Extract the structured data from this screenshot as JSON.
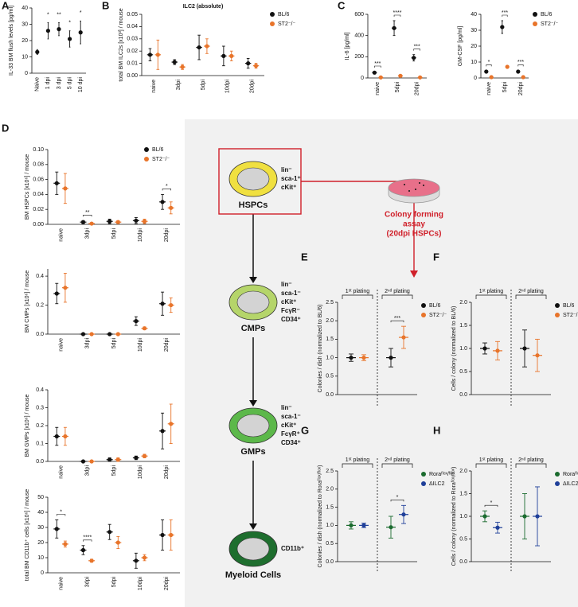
{
  "chart_data": [
    {
      "panel": "A",
      "type": "dot",
      "ylabel": "IL-33 BM flush levels [pg/ml]",
      "categories": [
        "Naive",
        "1 dpi",
        "3 dpi",
        "5 dpi",
        "10 dpi"
      ],
      "series": [
        {
          "color": "#111111",
          "values": [
            13,
            26,
            27,
            21,
            25
          ],
          "errors": [
            1.5,
            5,
            4,
            5,
            7
          ]
        }
      ],
      "significance": [
        null,
        "*",
        "**",
        "*",
        "*"
      ],
      "ylim": [
        0,
        40
      ],
      "yticks": [
        0,
        10,
        20,
        30,
        40
      ]
    },
    {
      "panel": "B",
      "type": "dot",
      "title": "ILC2 (absolute)",
      "ylabel": "total BM ILC2s [x10³] / mouse",
      "categories": [
        "naive",
        "3dpi",
        "5dpi",
        "10dpi",
        "20dpi"
      ],
      "series": [
        {
          "name": "BL/6",
          "color": "#111111",
          "values": [
            0.017,
            0.011,
            0.023,
            0.016,
            0.01
          ],
          "errors": [
            0.005,
            0.002,
            0.01,
            0.008,
            0.004
          ]
        },
        {
          "name": "ST2⁻/⁻",
          "color": "#e8742a",
          "values": [
            0.017,
            0.007,
            0.024,
            0.016,
            0.008
          ],
          "errors": [
            0.012,
            0.002,
            0.006,
            0.004,
            0.002
          ]
        }
      ],
      "ylim": [
        0,
        0.05
      ],
      "yticks": [
        {
          "value": 0,
          "label": "0.00"
        },
        0.01,
        0.02,
        0.03,
        0.04,
        0.05
      ],
      "legend": true
    },
    {
      "panel": "C",
      "type": "dot",
      "ylabel": "IL-6 [pg/ml]",
      "categories": [
        "naive",
        "5dpi",
        "20dpi"
      ],
      "series": [
        {
          "name": "BL/6",
          "color": "#111111",
          "values": [
            50,
            470,
            190
          ],
          "errors": [
            10,
            70,
            30
          ]
        },
        {
          "name": "ST2⁻/⁻",
          "color": "#e8742a",
          "values": [
            5,
            20,
            5
          ],
          "errors": [
            2,
            4,
            2
          ]
        }
      ],
      "significance": [
        "***",
        "****",
        "***"
      ],
      "ylim": [
        0,
        600
      ],
      "yticks": [
        0,
        200,
        400,
        600
      ]
    },
    {
      "type": "dot",
      "ylabel": "GM-CSF [pg/ml]",
      "categories": [
        "naive",
        "5dpi",
        "20dpi"
      ],
      "series": [
        {
          "name": "BL/6",
          "color": "#111111",
          "values": [
            4,
            32,
            4
          ],
          "errors": [
            0.8,
            4,
            0.8
          ]
        },
        {
          "name": "ST2⁻/⁻",
          "color": "#e8742a",
          "values": [
            0.5,
            7,
            0.5
          ],
          "errors": [
            0.3,
            0.8,
            0.3
          ]
        }
      ],
      "significance": [
        "*",
        "***",
        "***"
      ],
      "ylim": [
        0,
        40
      ],
      "yticks": [
        0,
        10,
        20,
        30,
        40
      ],
      "legend": true
    },
    {
      "panel": "D",
      "type": "dot",
      "ylabel": "BM HSPCs [x10⁶] / mouse",
      "categories": [
        "naive",
        "3dpi",
        "5dpi",
        "10dpi",
        "20dpi"
      ],
      "series": [
        {
          "name": "BL/6",
          "color": "#111111",
          "values": [
            0.055,
            0.003,
            0.004,
            0.005,
            0.03
          ],
          "errors": [
            0.015,
            0.002,
            0.003,
            0.004,
            0.01
          ]
        },
        {
          "name": "ST2⁻/⁻",
          "color": "#e8742a",
          "values": [
            0.048,
            0.001,
            0.003,
            0.004,
            0.022
          ],
          "errors": [
            0.02,
            0.001,
            0.002,
            0.003,
            0.008
          ]
        }
      ],
      "significance": [
        null,
        "**",
        null,
        null,
        "*"
      ],
      "ylim": [
        0,
        0.1
      ],
      "yticks": [
        {
          "value": 0,
          "label": "0.00"
        },
        0.02,
        0.04,
        0.06,
        0.08,
        {
          "value": 0.1,
          "label": "0.10"
        }
      ],
      "legend": true
    },
    {
      "type": "dot",
      "ylabel": "BM CMPs [x10⁶] / mouse",
      "categories": [
        "naive",
        "3dpi",
        "5dpi",
        "10dpi",
        "20dpi"
      ],
      "series": [
        {
          "name": "BL/6",
          "color": "#111111",
          "values": [
            0.28,
            0.0,
            0.0,
            0.09,
            0.21
          ],
          "errors": [
            0.07,
            0.003,
            0.004,
            0.03,
            0.08
          ]
        },
        {
          "name": "ST2⁻/⁻",
          "color": "#e8742a",
          "values": [
            0.32,
            0.0,
            0.0,
            0.04,
            0.2
          ],
          "errors": [
            0.1,
            0.002,
            0.003,
            0.01,
            0.05
          ]
        }
      ],
      "ylim": [
        0,
        0.45
      ],
      "yticks": [
        {
          "value": 0,
          "label": "0.0"
        },
        0.2,
        0.4
      ]
    },
    {
      "type": "dot",
      "ylabel": "BM GMPs [x10⁶] / mouse",
      "categories": [
        "naive",
        "3dpi",
        "5dpi",
        "10dpi",
        "20dpi"
      ],
      "series": [
        {
          "name": "BL/6",
          "color": "#111111",
          "values": [
            0.14,
            0.0,
            0.01,
            0.02,
            0.17
          ],
          "errors": [
            0.05,
            0.002,
            0.01,
            0.01,
            0.1
          ]
        },
        {
          "name": "ST2⁻/⁻",
          "color": "#e8742a",
          "values": [
            0.14,
            0.0,
            0.01,
            0.03,
            0.21
          ],
          "errors": [
            0.05,
            0.002,
            0.01,
            0.01,
            0.11
          ]
        }
      ],
      "ylim": [
        0,
        0.4
      ],
      "yticks": [
        {
          "value": 0,
          "label": "0.0"
        },
        0.1,
        0.2,
        0.3,
        0.4
      ]
    },
    {
      "type": "dot",
      "ylabel": "total BM CD11b⁺ cells [x10⁶] / mouse",
      "categories": [
        "naive",
        "3dpi",
        "5dpi",
        "10dpi",
        "20dpi"
      ],
      "series": [
        {
          "name": "BL/6",
          "color": "#111111",
          "values": [
            29,
            15,
            27,
            8,
            25
          ],
          "errors": [
            6,
            3,
            5,
            5,
            10
          ]
        },
        {
          "name": "ST2⁻/⁻",
          "color": "#e8742a",
          "values": [
            19,
            8,
            20,
            10,
            25
          ],
          "errors": [
            2,
            1,
            4,
            2,
            10
          ]
        }
      ],
      "significance": [
        "*",
        "****",
        null,
        null,
        null
      ],
      "ylim": [
        0,
        50
      ],
      "yticks": [
        0,
        10,
        20,
        30,
        40,
        50
      ]
    },
    {
      "panel": "E",
      "type": "dot",
      "ylabel": "Colonies / dish (normalized to BL/6)",
      "categories": [
        "1ˢᵗ plating",
        "2ⁿᵈ plating"
      ],
      "series": [
        {
          "name": "BL/6",
          "color": "#111111",
          "values": [
            1.0,
            1.0
          ],
          "errors": [
            0.1,
            0.25
          ]
        },
        {
          "name": "ST2⁻/⁻",
          "color": "#e8742a",
          "values": [
            1.0,
            1.55
          ],
          "errors": [
            0.08,
            0.3
          ]
        }
      ],
      "significance": [
        null,
        "***"
      ],
      "ylim": [
        0,
        2.5
      ],
      "yticks": [
        {
          "value": 0,
          "label": "0.0"
        },
        0.5,
        {
          "value": 1,
          "label": "1.0"
        },
        1.5,
        {
          "value": 2,
          "label": "2.0"
        },
        2.5
      ],
      "legend": true
    },
    {
      "panel": "F",
      "type": "dot",
      "ylabel": "Cells / colony (normalized to BL/6)",
      "categories": [
        "1ˢᵗ plating",
        "2ⁿᵈ plating"
      ],
      "series": [
        {
          "name": "BL/6",
          "color": "#111111",
          "values": [
            1.0,
            1.0
          ],
          "errors": [
            0.12,
            0.4
          ]
        },
        {
          "name": "ST2⁻/⁻",
          "color": "#e8742a",
          "values": [
            0.95,
            0.85
          ],
          "errors": [
            0.2,
            0.35
          ]
        }
      ],
      "ylim": [
        0,
        2.0
      ],
      "yticks": [
        {
          "value": 0,
          "label": "0.0"
        },
        0.5,
        {
          "value": 1,
          "label": "1.0"
        },
        1.5,
        {
          "value": 2,
          "label": "2.0"
        }
      ],
      "legend": true
    },
    {
      "panel": "G",
      "type": "dot",
      "ylabel": "Colonies / dish (normalized to Roraᶠˡᵒˣ/ᶠˡᵒˣ)",
      "categories": [
        "1ˢᵗ plating",
        "2ⁿᵈ plating"
      ],
      "series": [
        {
          "name": "Roraᶠˡᵒˣ/ᶠˡᵒˣ",
          "color": "#1a6b2e",
          "values": [
            1.0,
            0.95
          ],
          "errors": [
            0.1,
            0.3
          ]
        },
        {
          "name": "ΔILC2",
          "color": "#1f3f99",
          "values": [
            1.0,
            1.3
          ],
          "errors": [
            0.06,
            0.25
          ]
        }
      ],
      "significance": [
        null,
        "*"
      ],
      "ylim": [
        0,
        2.5
      ],
      "yticks": [
        {
          "value": 0,
          "label": "0.0"
        },
        0.5,
        {
          "value": 1,
          "label": "1.0"
        },
        1.5,
        {
          "value": 2,
          "label": "2.0"
        },
        2.5
      ],
      "legend": true
    },
    {
      "panel": "H",
      "type": "dot",
      "ylabel": "Cells / colony (normalized to Roraᶠˡᵒˣ/ᶠˡᵒˣ)",
      "categories": [
        "1ˢᵗ plating",
        "2ⁿᵈ plating"
      ],
      "series": [
        {
          "name": "Roraᶠˡᵒˣ/ᶠˡᵒˣ",
          "color": "#1a6b2e",
          "values": [
            1.0,
            1.0
          ],
          "errors": [
            0.12,
            0.5
          ]
        },
        {
          "name": "ΔILC2",
          "color": "#1f3f99",
          "values": [
            0.75,
            1.0
          ],
          "errors": [
            0.12,
            0.65
          ]
        }
      ],
      "significance": [
        "*",
        null
      ],
      "ylim": [
        0,
        2.0
      ],
      "yticks": [
        {
          "value": 0,
          "label": "0.0"
        },
        0.5,
        {
          "value": 1,
          "label": "1.0"
        },
        1.5,
        {
          "value": 2,
          "label": "2.0"
        }
      ],
      "legend": true
    }
  ],
  "diagram": {
    "cells": [
      {
        "label": "HSPCs",
        "markers": [
          "lin⁻",
          "sca-1⁺",
          "cKit⁺"
        ]
      },
      {
        "label": "CMPs",
        "markers": [
          "lin⁻",
          "sca-1⁻",
          "cKit⁺",
          "FcγR⁻",
          "CD34⁺"
        ]
      },
      {
        "label": "GMPs",
        "markers": [
          "lin⁻",
          "sca-1⁻",
          "cKit⁺",
          "FcγR⁺",
          "CD34⁺"
        ]
      },
      {
        "label": "Myeloid Cells",
        "markers": [
          "CD11b⁺"
        ]
      }
    ],
    "assay": [
      "Colony forming",
      "assay",
      "(20dpi HSPCs)"
    ]
  }
}
